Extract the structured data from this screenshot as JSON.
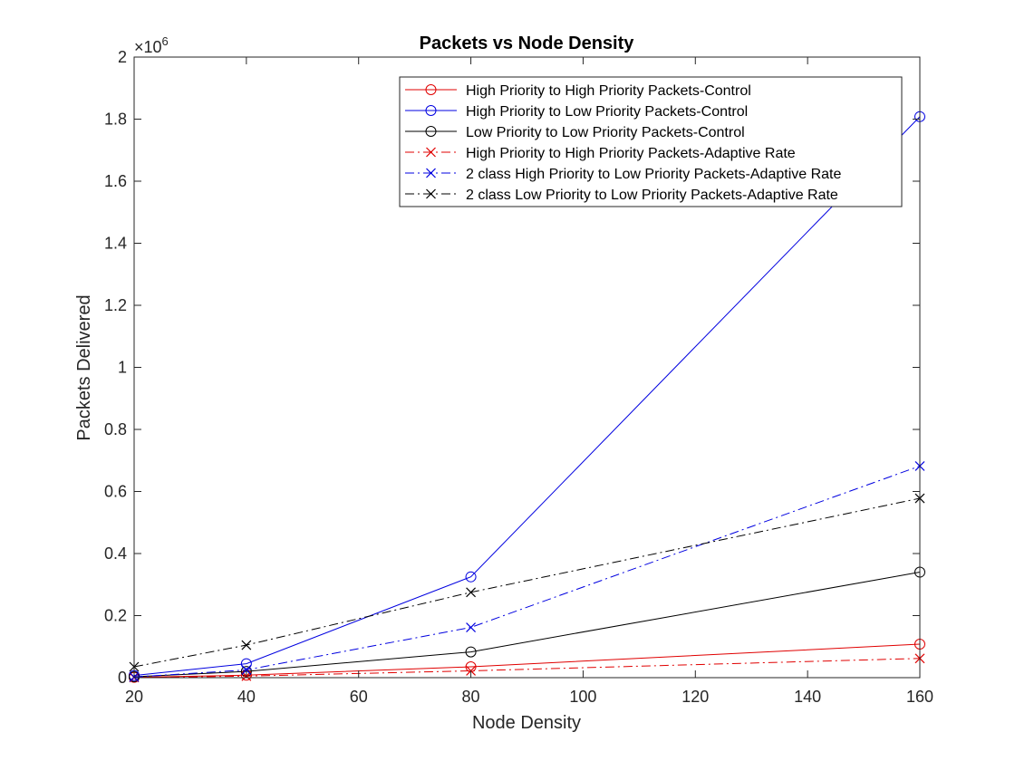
{
  "chart_data": {
    "type": "line",
    "title": "Packets vs Node Density",
    "xlabel": "Node Density",
    "ylabel": "Packets Delivered",
    "xlim": [
      20,
      160
    ],
    "ylim": [
      0,
      2000000
    ],
    "exponent_label": "×10",
    "exponent_power": "6",
    "x_ticks": [
      20,
      40,
      60,
      80,
      100,
      120,
      140,
      160
    ],
    "x_tick_labels": [
      "20",
      "40",
      "60",
      "80",
      "100",
      "120",
      "140",
      "160"
    ],
    "y_ticks": [
      0,
      200000,
      400000,
      600000,
      800000,
      1000000,
      1200000,
      1400000,
      1600000,
      1800000,
      2000000
    ],
    "y_tick_labels": [
      "0",
      "0.2",
      "0.4",
      "0.6",
      "0.8",
      "1",
      "1.2",
      "1.4",
      "1.6",
      "1.8",
      "2"
    ],
    "grid": false,
    "legend_position": "top-right",
    "x": [
      20,
      40,
      80,
      160
    ],
    "series": [
      {
        "name": "High Priority to High Priority Packets-Control",
        "values": [
          1000,
          8000,
          35000,
          108000
        ],
        "color": "#e00000",
        "line": "solid",
        "marker": "circle"
      },
      {
        "name": "High Priority to Low Priority Packets-Control",
        "values": [
          7000,
          45000,
          325000,
          1808000
        ],
        "color": "#0000e0",
        "line": "solid",
        "marker": "circle"
      },
      {
        "name": "Low Priority to Low Priority Packets-Control",
        "values": [
          3000,
          20000,
          83000,
          340000
        ],
        "color": "#000000",
        "line": "solid",
        "marker": "circle"
      },
      {
        "name": "High Priority to High Priority Packets-Adaptive Rate",
        "values": [
          500,
          5000,
          22000,
          62000
        ],
        "color": "#e00000",
        "line": "dashdot",
        "marker": "x"
      },
      {
        "name": "2 class High Priority to Low Priority Packets-Adaptive Rate",
        "values": [
          2000,
          25000,
          162000,
          682000
        ],
        "color": "#0000e0",
        "line": "dashdot",
        "marker": "x"
      },
      {
        "name": "2 class Low Priority to Low Priority Packets-Adaptive Rate",
        "values": [
          35000,
          105000,
          275000,
          578000
        ],
        "color": "#000000",
        "line": "dashdot",
        "marker": "x"
      }
    ]
  }
}
